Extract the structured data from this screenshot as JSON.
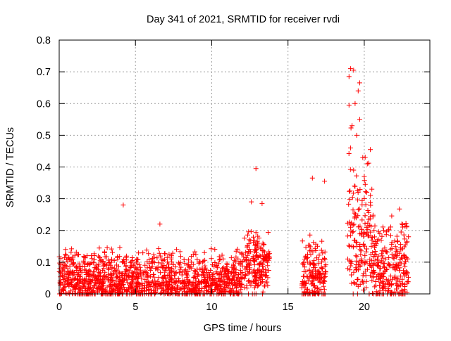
{
  "chart_data": {
    "type": "scatter",
    "title": "Day 341 of 2021, SRMTID for receiver rvdi",
    "xlabel": "GPS time / hours",
    "ylabel": "SRMTID / TECUs",
    "xlim": [
      0,
      24.3
    ],
    "ylim": [
      0,
      0.8
    ],
    "x_ticks": [
      0,
      5,
      10,
      15,
      20
    ],
    "y_ticks": [
      0,
      0.1,
      0.2,
      0.3,
      0.4,
      0.5,
      0.6,
      0.7,
      0.8
    ],
    "x_tick_labels": [
      "0",
      "5",
      "10",
      "15",
      "20"
    ],
    "y_tick_labels": [
      "0",
      "0.1",
      "0.2",
      "0.3",
      "0.4",
      "0.5",
      "0.6",
      "0.7",
      "0.8"
    ],
    "grid": true,
    "marker": "+",
    "colors": {
      "series": "#ff0000",
      "axis": "#000000",
      "grid": "#a0a0a0"
    },
    "series": [
      {
        "name": "SRMTID",
        "segments": [
          {
            "x_start": 0.0,
            "x_end": 13.8,
            "base_level": 0.07,
            "spread": 0.06
          },
          {
            "x_start": 15.9,
            "x_end": 17.5,
            "base_level": 0.08,
            "spread": 0.1
          },
          {
            "x_start": 18.9,
            "x_end": 22.9,
            "base_level": 0.12,
            "spread": 0.12
          }
        ],
        "notable_points": [
          {
            "x": 12.9,
            "y": 0.395
          },
          {
            "x": 4.2,
            "y": 0.28
          },
          {
            "x": 6.6,
            "y": 0.22
          },
          {
            "x": 16.6,
            "y": 0.365
          },
          {
            "x": 17.4,
            "y": 0.355
          },
          {
            "x": 19.1,
            "y": 0.71
          },
          {
            "x": 19.3,
            "y": 0.705
          },
          {
            "x": 19.0,
            "y": 0.685
          },
          {
            "x": 19.7,
            "y": 0.665
          },
          {
            "x": 19.6,
            "y": 0.64
          },
          {
            "x": 19.4,
            "y": 0.6
          },
          {
            "x": 19.0,
            "y": 0.595
          },
          {
            "x": 19.7,
            "y": 0.55
          },
          {
            "x": 19.2,
            "y": 0.53
          },
          {
            "x": 19.5,
            "y": 0.5
          },
          {
            "x": 19.1,
            "y": 0.46
          },
          {
            "x": 20.4,
            "y": 0.455
          },
          {
            "x": 19.9,
            "y": 0.43
          },
          {
            "x": 20.2,
            "y": 0.41
          },
          {
            "x": 19.3,
            "y": 0.39
          },
          {
            "x": 20.0,
            "y": 0.37
          },
          {
            "x": 20.5,
            "y": 0.33
          },
          {
            "x": 13.3,
            "y": 0.285
          },
          {
            "x": 12.6,
            "y": 0.29
          }
        ]
      }
    ]
  }
}
